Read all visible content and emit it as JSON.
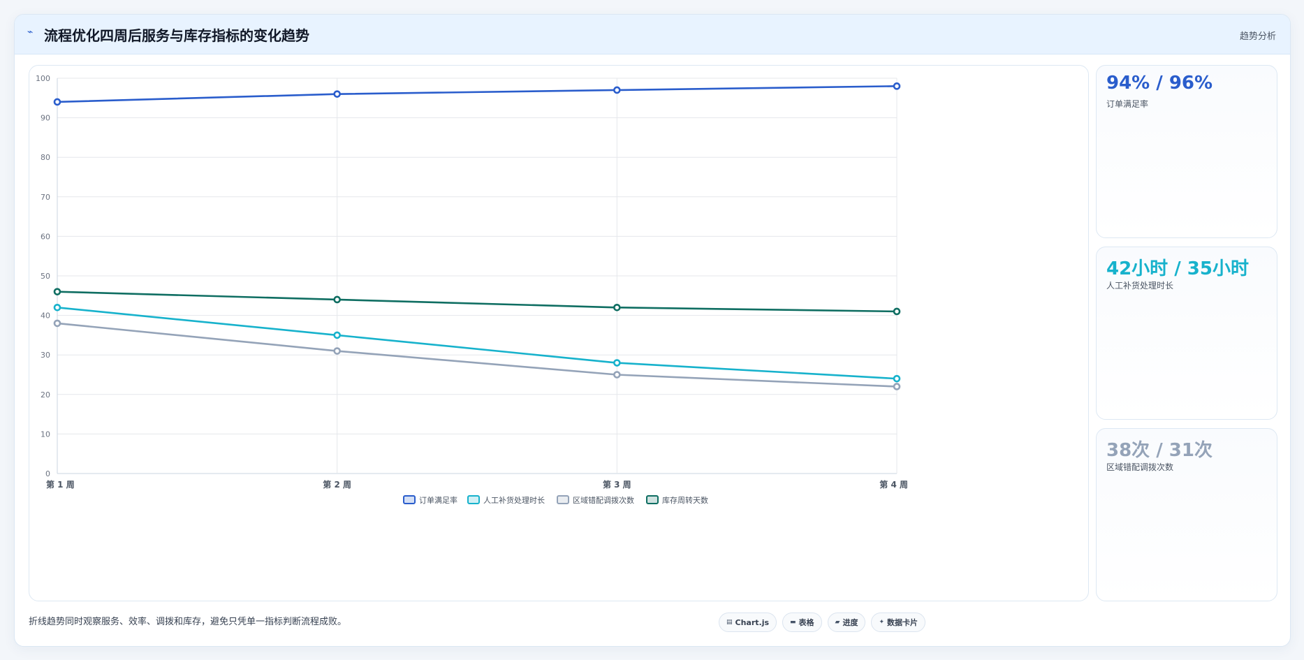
{
  "header": {
    "title": "流程优化四周后服务与库存指标的变化趋势",
    "tag": "趋势分析"
  },
  "stats": [
    {
      "value": "94% / 96%",
      "label": "订单满足率",
      "color": "#2a5dcc"
    },
    {
      "value": "42小时 / 35小时",
      "label": "人工补货处理时长",
      "color": "#17b2cc"
    },
    {
      "value": "38次 / 31次",
      "label": "区域错配调拨次数",
      "color": "#94a3b8"
    }
  ],
  "footer": {
    "note": "折线趋势同时观察服务、效率、调拨和库存，避免只凭单一指标判断流程成败。",
    "chips": [
      {
        "icon": "chart-icon",
        "label": "Chart.js"
      },
      {
        "icon": "table-icon",
        "label": "表格"
      },
      {
        "icon": "progress-icon",
        "label": "进度"
      },
      {
        "icon": "sparkle-icon",
        "label": "数据卡片"
      }
    ]
  },
  "chart_data": {
    "type": "line",
    "title": "",
    "xlabel": "",
    "ylabel": "",
    "categories": [
      "第 1 周",
      "第 2 周",
      "第 3 周",
      "第 4 周"
    ],
    "ylim": [
      0,
      100
    ],
    "yticks": [
      0,
      10,
      20,
      30,
      40,
      50,
      60,
      70,
      80,
      90,
      100
    ],
    "grid": true,
    "legend": "bottom",
    "series": [
      {
        "name": "订单满足率",
        "values": [
          94,
          96,
          97,
          98
        ],
        "color": "#2a5dcc"
      },
      {
        "name": "人工补货处理时长",
        "values": [
          42,
          35,
          28,
          24
        ],
        "color": "#17b2cc"
      },
      {
        "name": "区域错配调拨次数",
        "values": [
          38,
          31,
          25,
          22
        ],
        "color": "#94a3b8"
      },
      {
        "name": "库存周转天数",
        "values": [
          46,
          44,
          42,
          41
        ],
        "color": "#0f6e62"
      }
    ]
  }
}
